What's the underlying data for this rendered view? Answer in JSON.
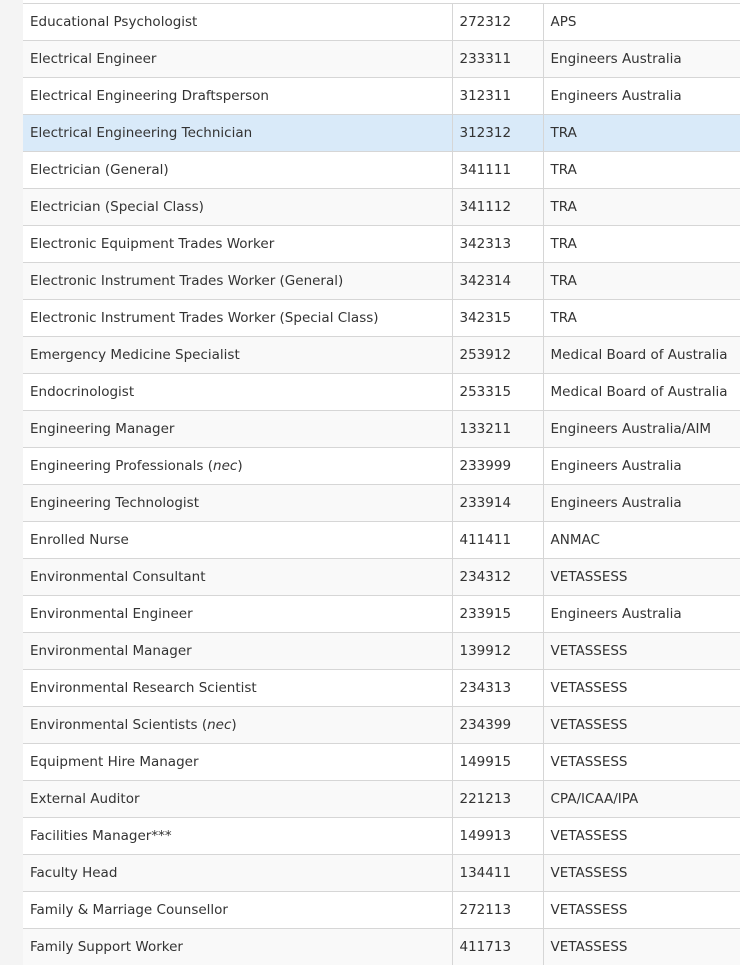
{
  "rows": [
    {
      "occupation": "Educational Psychologist",
      "code": "272312",
      "authority": "APS"
    },
    {
      "occupation": "Electrical Engineer",
      "code": "233311",
      "authority": "Engineers Australia"
    },
    {
      "occupation": "Electrical Engineering Draftsperson",
      "code": "312311",
      "authority": "Engineers Australia"
    },
    {
      "occupation": "Electrical Engineering Technician",
      "code": "312312",
      "authority": "TRA",
      "highlighted": true
    },
    {
      "occupation": "Electrician (General)",
      "code": "341111",
      "authority": "TRA"
    },
    {
      "occupation": "Electrician (Special Class)",
      "code": "341112",
      "authority": "TRA"
    },
    {
      "occupation": "Electronic Equipment Trades Worker",
      "code": "342313",
      "authority": "TRA"
    },
    {
      "occupation": "Electronic Instrument Trades Worker (General)",
      "code": "342314",
      "authority": "TRA"
    },
    {
      "occupation": "Electronic Instrument Trades Worker (Special Class)",
      "code": "342315",
      "authority": "TRA"
    },
    {
      "occupation": "Emergency Medicine Specialist",
      "code": "253912",
      "authority": "Medical Board of Australia"
    },
    {
      "occupation": "Endocrinologist",
      "code": "253315",
      "authority": "Medical Board of Australia"
    },
    {
      "occupation": "Engineering Manager",
      "code": "133211",
      "authority": "Engineers Australia/AIM"
    },
    {
      "occupation": "Engineering Professionals",
      "nec": "nec",
      "code": "233999",
      "authority": "Engineers Australia"
    },
    {
      "occupation": "Engineering Technologist",
      "code": "233914",
      "authority": "Engineers Australia"
    },
    {
      "occupation": "Enrolled Nurse",
      "code": "411411",
      "authority": "ANMAC"
    },
    {
      "occupation": "Environmental Consultant",
      "code": "234312",
      "authority": "VETASSESS"
    },
    {
      "occupation": "Environmental Engineer",
      "code": "233915",
      "authority": "Engineers Australia"
    },
    {
      "occupation": "Environmental Manager",
      "code": "139912",
      "authority": "VETASSESS"
    },
    {
      "occupation": "Environmental Research Scientist",
      "code": "234313",
      "authority": "VETASSESS"
    },
    {
      "occupation": "Environmental Scientists",
      "nec": "nec",
      "code": "234399",
      "authority": "VETASSESS"
    },
    {
      "occupation": "Equipment Hire Manager",
      "code": "149915",
      "authority": "VETASSESS"
    },
    {
      "occupation": "External Auditor",
      "code": "221213",
      "authority": "CPA/ICAA/IPA"
    },
    {
      "occupation": "Facilities Manager***",
      "code": "149913",
      "authority": "VETASSESS"
    },
    {
      "occupation": "Faculty Head",
      "code": "134411",
      "authority": "VETASSESS"
    },
    {
      "occupation": "Family & Marriage Counsellor",
      "code": "272113",
      "authority": "VETASSESS"
    },
    {
      "occupation": "Family Support Worker",
      "code": "411713",
      "authority": "VETASSESS"
    }
  ],
  "colors": {
    "highlight": "#d9eaf9",
    "stripe": "#f9f9f9",
    "border": "#d6d6d6"
  }
}
